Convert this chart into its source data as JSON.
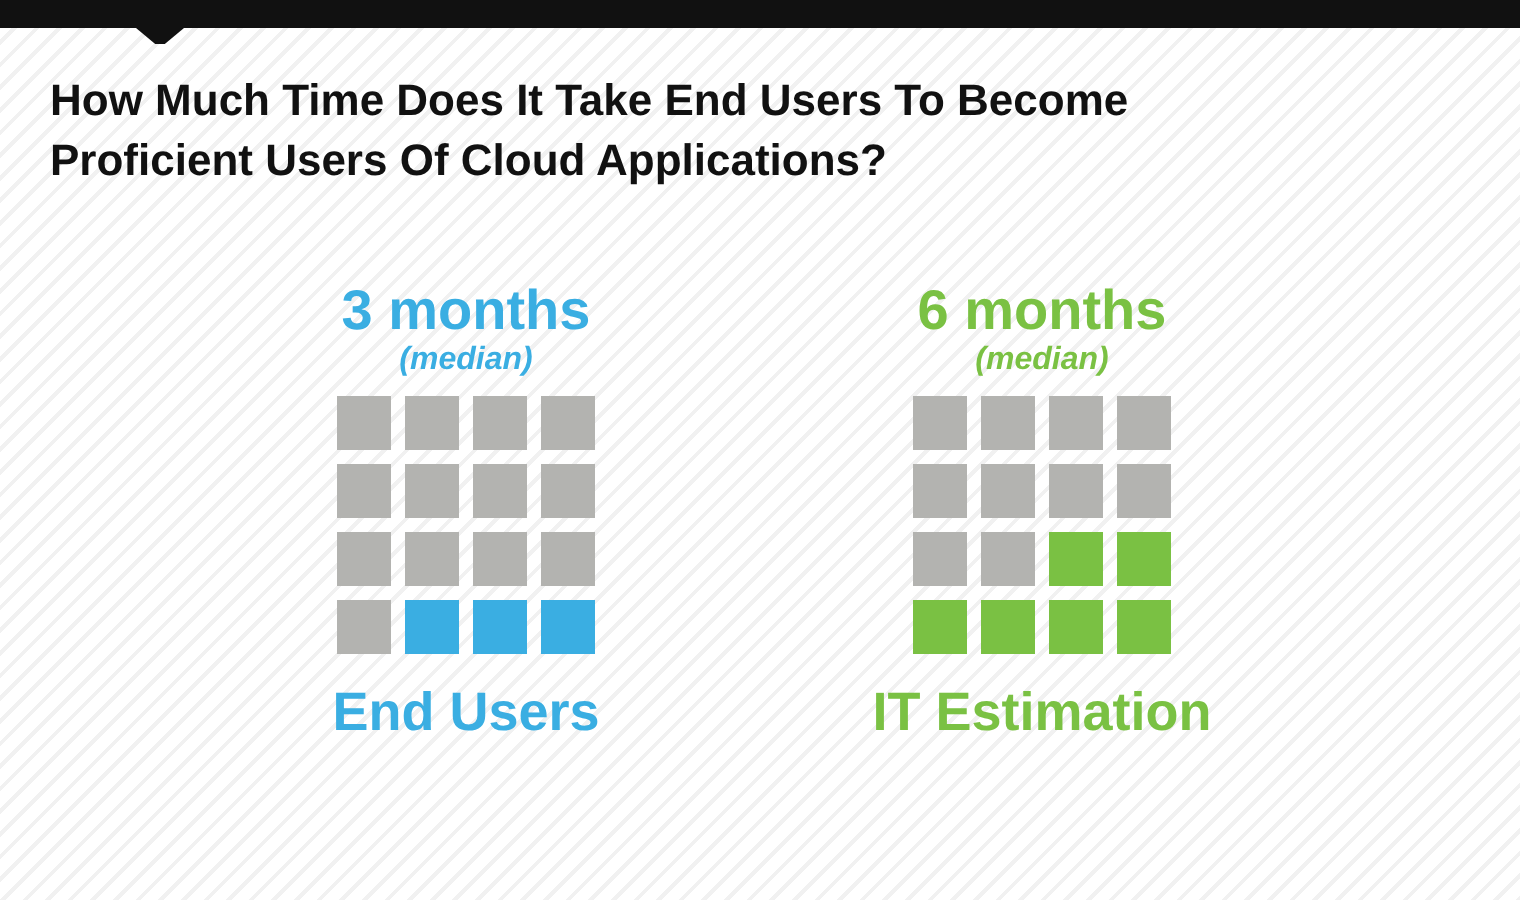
{
  "chart_data": {
    "type": "other",
    "title": "How Much Time Does It Take End Users To Become Proficient Users Of Cloud Applications?",
    "categories": [
      "End Users",
      "IT Estimation"
    ],
    "values": [
      3,
      6
    ],
    "value_labels": [
      "3 months",
      "6 months"
    ],
    "colors": [
      "#3aaee2",
      "#7ac143"
    ],
    "annotations": [
      "(median)",
      "(median)"
    ]
  }
}
